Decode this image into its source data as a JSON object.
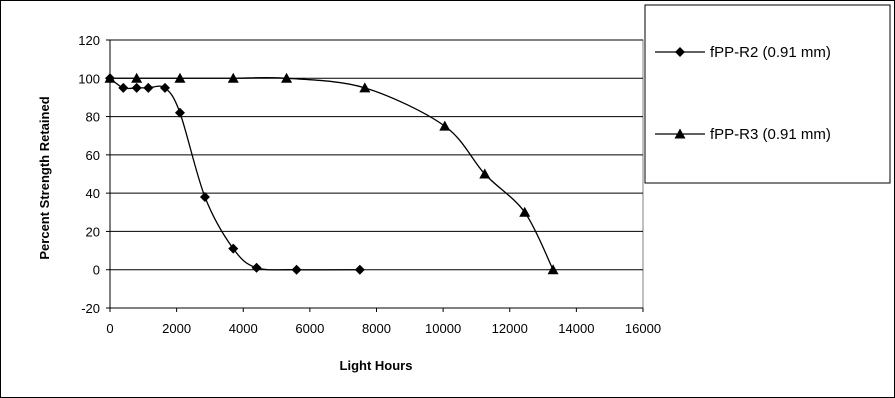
{
  "chart_data": {
    "type": "line",
    "title": "",
    "xlabel": "Light Hours",
    "ylabel": "Percent Strength Retained",
    "xlim": [
      0,
      16000
    ],
    "ylim": [
      -20,
      120
    ],
    "xticks": [
      0,
      2000,
      4000,
      6000,
      8000,
      10000,
      12000,
      14000,
      16000
    ],
    "yticks": [
      -20,
      0,
      20,
      40,
      60,
      80,
      100,
      120
    ],
    "grid": "horizontal",
    "legend_position": "right",
    "series": [
      {
        "name": "fPP-R2 (0.91 mm)",
        "marker": "diamond",
        "color": "#000000",
        "x": [
          0,
          400,
          800,
          1150,
          1650,
          2100,
          2850,
          3700,
          4400,
          5600,
          7500
        ],
        "y": [
          100,
          95,
          95,
          95,
          95,
          82,
          38,
          11,
          1,
          0,
          0
        ]
      },
      {
        "name": "fPP-R3 (0.91 mm)",
        "marker": "triangle",
        "color": "#000000",
        "x": [
          0,
          800,
          2100,
          3700,
          5300,
          7650,
          10050,
          11250,
          12450,
          13300
        ],
        "y": [
          100,
          100,
          100,
          100,
          100,
          95,
          75,
          50,
          30,
          0
        ]
      }
    ]
  }
}
